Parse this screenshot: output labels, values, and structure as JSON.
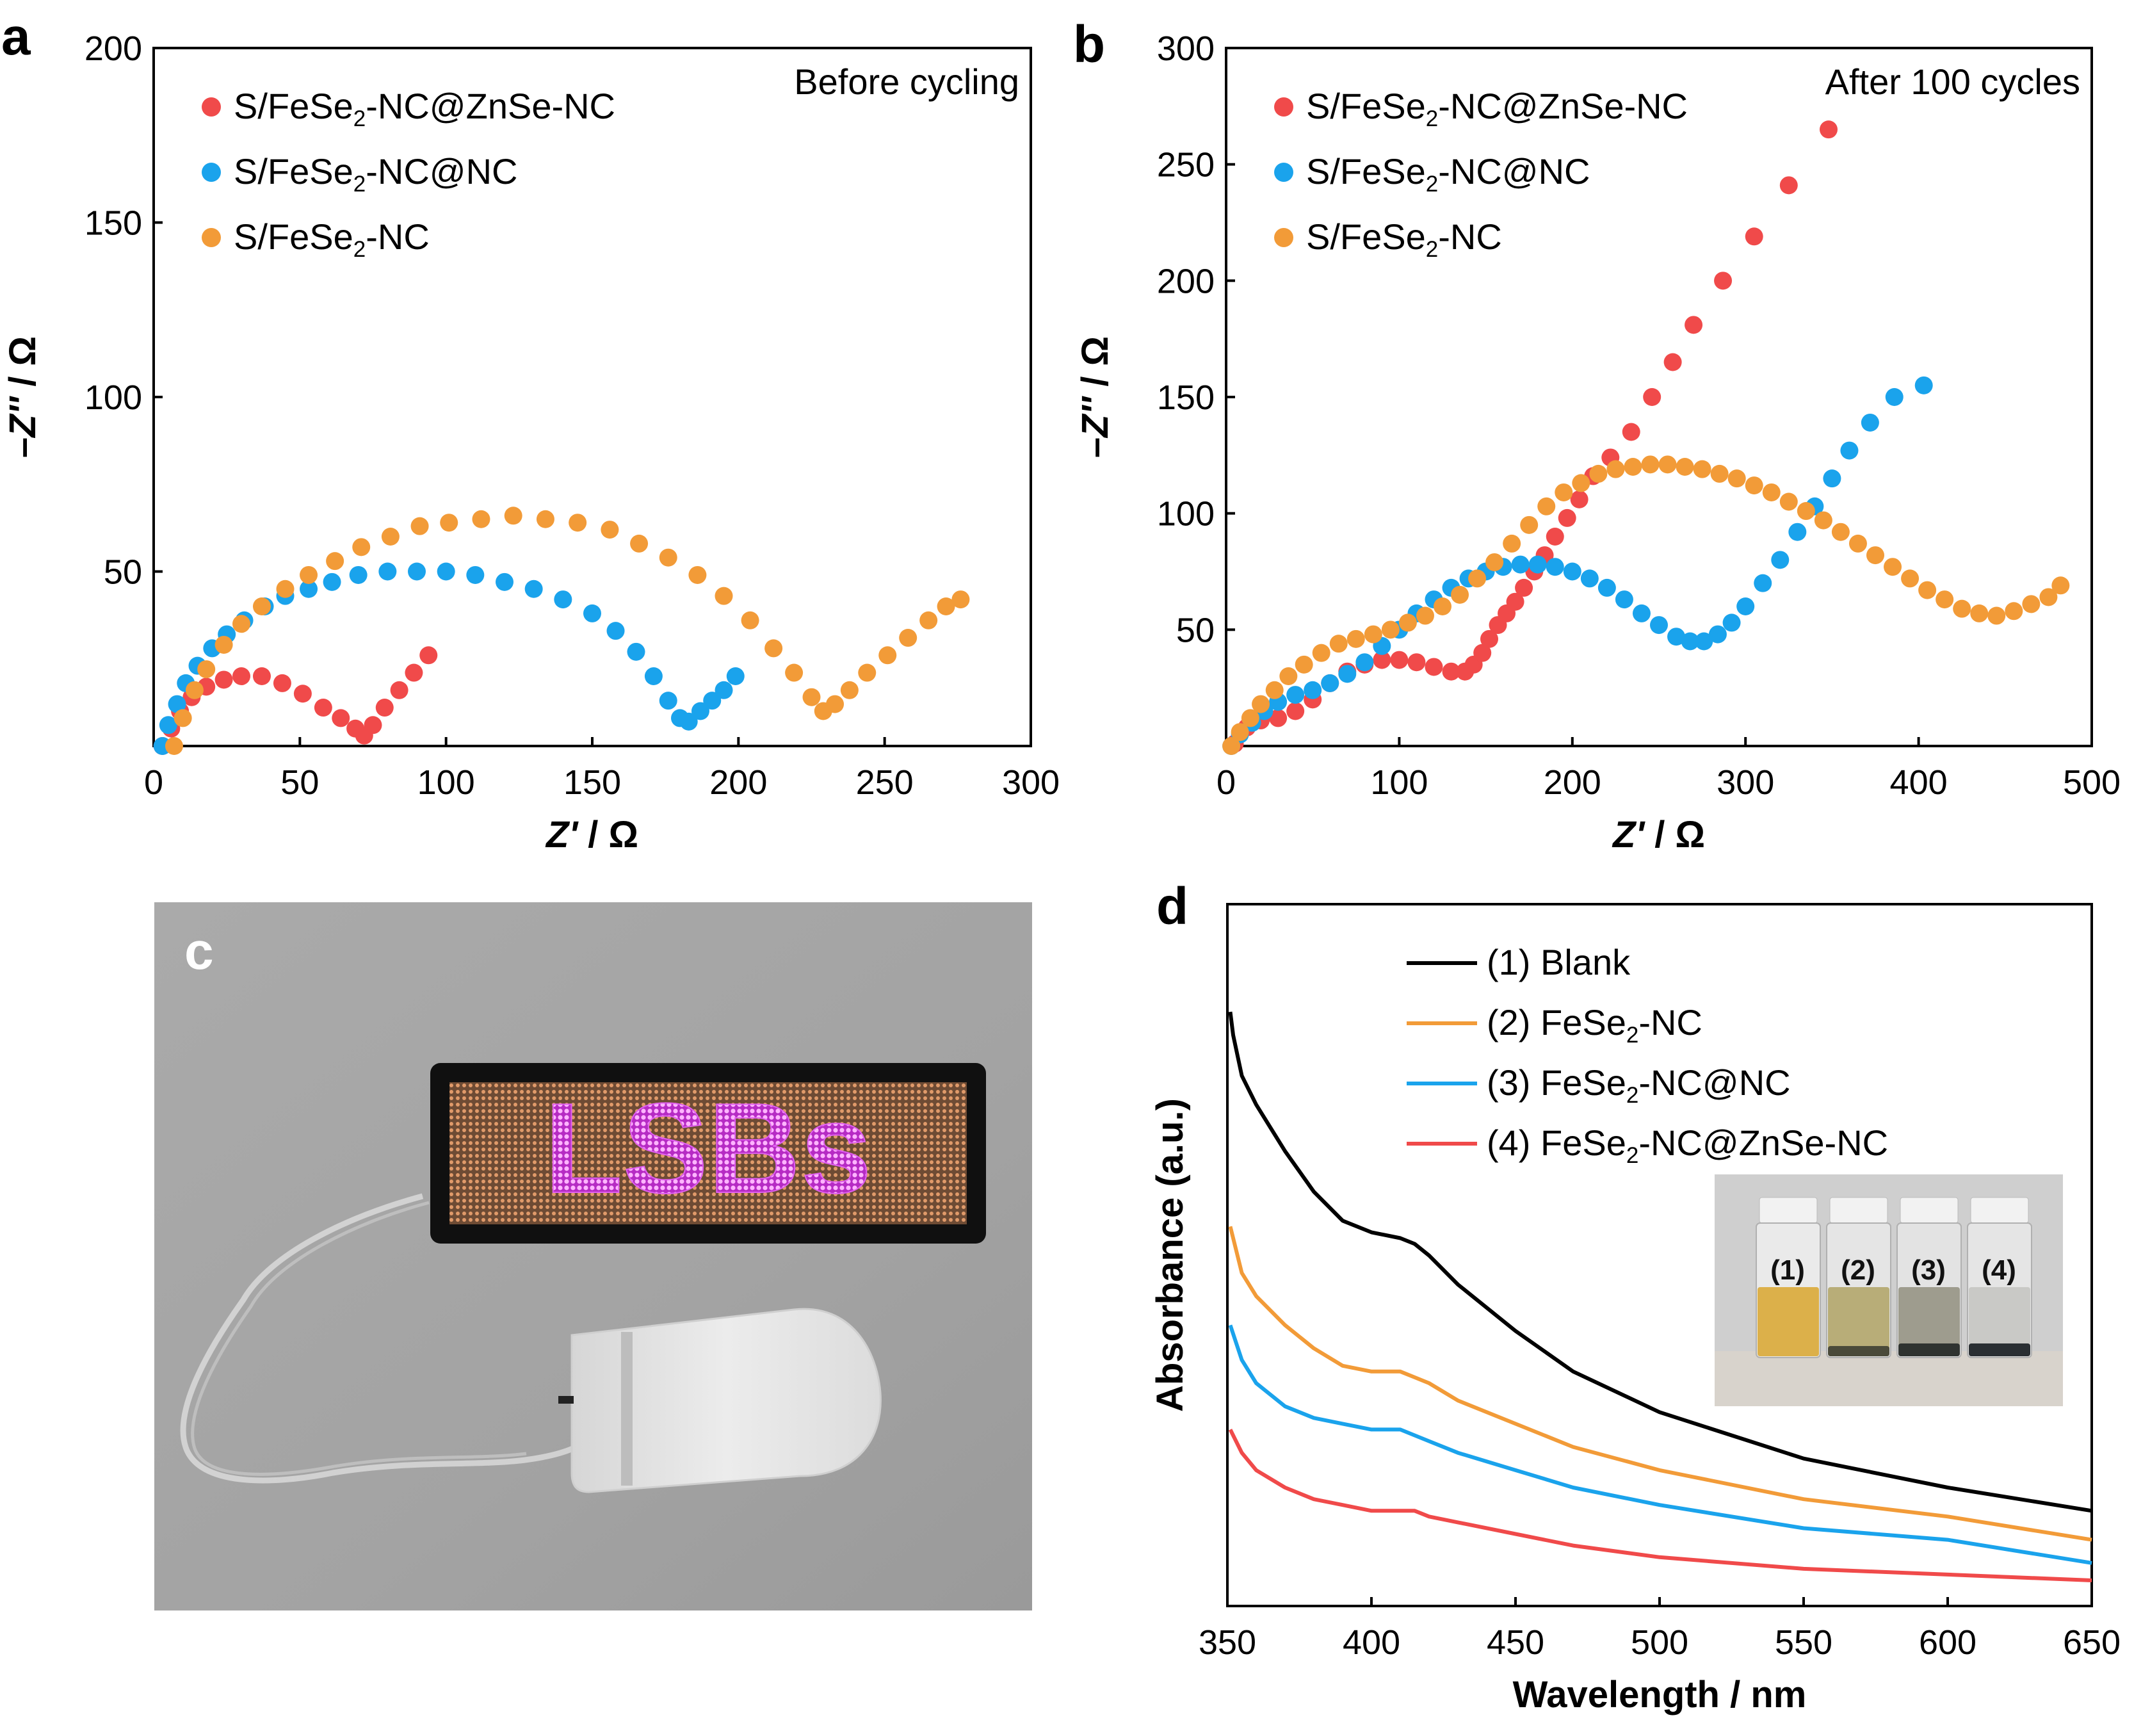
{
  "colors": {
    "red": "#f04a4a",
    "blue": "#1aa3ec",
    "orange": "#f29b38",
    "black": "#000000"
  },
  "panels": {
    "a": {
      "letter": "a",
      "annotation": "Before cycling"
    },
    "b": {
      "letter": "b",
      "annotation": "After 100 cycles"
    },
    "c": {
      "letter": "c",
      "display_text": "LSBs"
    },
    "d": {
      "letter": "d",
      "vial_labels": [
        "(1)",
        "(2)",
        "(3)",
        "(4)"
      ]
    }
  },
  "chart_data": [
    {
      "panel": "a",
      "type": "scatter",
      "title": "",
      "annotation": "Before cycling",
      "xlabel": "Z' / Ω",
      "ylabel": "-Z'' / Ω",
      "xlim": [
        0,
        300
      ],
      "ylim": [
        0,
        200
      ],
      "xticks": [
        0,
        50,
        100,
        150,
        200,
        250,
        300
      ],
      "yticks": [
        50,
        100,
        150,
        200
      ],
      "legend_position": "top-left",
      "series": [
        {
          "name": "S/FeSe₂-NC@ZnSe-NC",
          "color": "#f04a4a",
          "points": [
            [
              3,
              0
            ],
            [
              6,
              5
            ],
            [
              9,
              10
            ],
            [
              13,
              14
            ],
            [
              18,
              17
            ],
            [
              24,
              19
            ],
            [
              30,
              20
            ],
            [
              37,
              20
            ],
            [
              44,
              18
            ],
            [
              51,
              15
            ],
            [
              58,
              11
            ],
            [
              64,
              8
            ],
            [
              69,
              5
            ],
            [
              72,
              3
            ],
            [
              75,
              6
            ],
            [
              79,
              11
            ],
            [
              84,
              16
            ],
            [
              89,
              21
            ],
            [
              94,
              26
            ]
          ]
        },
        {
          "name": "S/FeSe₂-NC@NC",
          "color": "#1aa3ec",
          "points": [
            [
              3,
              0
            ],
            [
              5,
              6
            ],
            [
              8,
              12
            ],
            [
              11,
              18
            ],
            [
              15,
              23
            ],
            [
              20,
              28
            ],
            [
              25,
              32
            ],
            [
              31,
              36
            ],
            [
              38,
              40
            ],
            [
              45,
              43
            ],
            [
              53,
              45
            ],
            [
              61,
              47
            ],
            [
              70,
              49
            ],
            [
              80,
              50
            ],
            [
              90,
              50
            ],
            [
              100,
              50
            ],
            [
              110,
              49
            ],
            [
              120,
              47
            ],
            [
              130,
              45
            ],
            [
              140,
              42
            ],
            [
              150,
              38
            ],
            [
              158,
              33
            ],
            [
              165,
              27
            ],
            [
              171,
              20
            ],
            [
              176,
              13
            ],
            [
              180,
              8
            ],
            [
              183,
              7
            ],
            [
              187,
              10
            ],
            [
              191,
              13
            ],
            [
              195,
              16
            ],
            [
              199,
              20
            ]
          ]
        },
        {
          "name": "S/FeSe₂-NC",
          "color": "#f29b38",
          "points": [
            [
              7,
              0
            ],
            [
              10,
              8
            ],
            [
              14,
              16
            ],
            [
              18,
              22
            ],
            [
              24,
              29
            ],
            [
              30,
              35
            ],
            [
              37,
              40
            ],
            [
              45,
              45
            ],
            [
              53,
              49
            ],
            [
              62,
              53
            ],
            [
              71,
              57
            ],
            [
              81,
              60
            ],
            [
              91,
              63
            ],
            [
              101,
              64
            ],
            [
              112,
              65
            ],
            [
              123,
              66
            ],
            [
              134,
              65
            ],
            [
              145,
              64
            ],
            [
              156,
              62
            ],
            [
              166,
              58
            ],
            [
              176,
              54
            ],
            [
              186,
              49
            ],
            [
              195,
              43
            ],
            [
              204,
              36
            ],
            [
              212,
              28
            ],
            [
              219,
              21
            ],
            [
              225,
              14
            ],
            [
              229,
              10
            ],
            [
              233,
              12
            ],
            [
              238,
              16
            ],
            [
              244,
              21
            ],
            [
              251,
              26
            ],
            [
              258,
              31
            ],
            [
              265,
              36
            ],
            [
              271,
              40
            ],
            [
              276,
              42
            ]
          ]
        }
      ]
    },
    {
      "panel": "b",
      "type": "scatter",
      "title": "",
      "annotation": "After 100 cycles",
      "xlabel": "Z' / Ω",
      "ylabel": "-Z'' / Ω",
      "xlim": [
        0,
        500
      ],
      "ylim": [
        0,
        300
      ],
      "xticks": [
        0,
        100,
        200,
        300,
        400,
        500
      ],
      "yticks": [
        50,
        100,
        150,
        200,
        250,
        300
      ],
      "legend_position": "top-left",
      "series": [
        {
          "name": "S/FeSe₂-NC@ZnSe-NC",
          "color": "#f04a4a",
          "points": [
            [
              5,
              1
            ],
            [
              12,
              8
            ],
            [
              20,
              11
            ],
            [
              30,
              12
            ],
            [
              40,
              15
            ],
            [
              50,
              20
            ],
            [
              60,
              27
            ],
            [
              70,
              32
            ],
            [
              80,
              35
            ],
            [
              90,
              37
            ],
            [
              100,
              37
            ],
            [
              110,
              36
            ],
            [
              120,
              34
            ],
            [
              130,
              32
            ],
            [
              138,
              32
            ],
            [
              143,
              35
            ],
            [
              148,
              40
            ],
            [
              152,
              46
            ],
            [
              157,
              52
            ],
            [
              162,
              57
            ],
            [
              167,
              62
            ],
            [
              172,
              68
            ],
            [
              178,
              75
            ],
            [
              184,
              82
            ],
            [
              190,
              90
            ],
            [
              197,
              98
            ],
            [
              204,
              106
            ],
            [
              212,
              116
            ],
            [
              222,
              124
            ],
            [
              234,
              135
            ],
            [
              246,
              150
            ],
            [
              258,
              165
            ],
            [
              270,
              181
            ],
            [
              287,
              200
            ],
            [
              305,
              219
            ],
            [
              325,
              241
            ],
            [
              348,
              265
            ]
          ]
        },
        {
          "name": "S/FeSe₂-NC@NC",
          "color": "#1aa3ec",
          "points": [
            [
              3,
              0
            ],
            [
              8,
              5
            ],
            [
              15,
              10
            ],
            [
              22,
              15
            ],
            [
              30,
              19
            ],
            [
              40,
              22
            ],
            [
              50,
              24
            ],
            [
              60,
              27
            ],
            [
              70,
              31
            ],
            [
              80,
              36
            ],
            [
              90,
              43
            ],
            [
              100,
              50
            ],
            [
              110,
              57
            ],
            [
              120,
              63
            ],
            [
              130,
              68
            ],
            [
              140,
              72
            ],
            [
              150,
              75
            ],
            [
              160,
              77
            ],
            [
              170,
              78
            ],
            [
              180,
              78
            ],
            [
              190,
              77
            ],
            [
              200,
              75
            ],
            [
              210,
              72
            ],
            [
              220,
              68
            ],
            [
              230,
              63
            ],
            [
              240,
              57
            ],
            [
              250,
              52
            ],
            [
              260,
              47
            ],
            [
              268,
              45
            ],
            [
              276,
              45
            ],
            [
              284,
              48
            ],
            [
              292,
              53
            ],
            [
              300,
              60
            ],
            [
              310,
              70
            ],
            [
              320,
              80
            ],
            [
              330,
              92
            ],
            [
              340,
              103
            ],
            [
              350,
              115
            ],
            [
              360,
              127
            ],
            [
              372,
              139
            ],
            [
              386,
              150
            ],
            [
              403,
              155
            ]
          ]
        },
        {
          "name": "S/FeSe₂-NC",
          "color": "#f29b38",
          "points": [
            [
              3,
              0
            ],
            [
              8,
              6
            ],
            [
              14,
              12
            ],
            [
              20,
              18
            ],
            [
              28,
              24
            ],
            [
              36,
              30
            ],
            [
              45,
              35
            ],
            [
              55,
              40
            ],
            [
              65,
              44
            ],
            [
              75,
              46
            ],
            [
              85,
              48
            ],
            [
              95,
              50
            ],
            [
              105,
              53
            ],
            [
              115,
              56
            ],
            [
              125,
              60
            ],
            [
              135,
              65
            ],
            [
              145,
              72
            ],
            [
              155,
              79
            ],
            [
              165,
              87
            ],
            [
              175,
              95
            ],
            [
              185,
              103
            ],
            [
              195,
              109
            ],
            [
              205,
              113
            ],
            [
              215,
              117
            ],
            [
              225,
              119
            ],
            [
              235,
              120
            ],
            [
              245,
              121
            ],
            [
              255,
              121
            ],
            [
              265,
              120
            ],
            [
              275,
              119
            ],
            [
              285,
              117
            ],
            [
              295,
              115
            ],
            [
              305,
              112
            ],
            [
              315,
              109
            ],
            [
              325,
              105
            ],
            [
              335,
              101
            ],
            [
              345,
              97
            ],
            [
              355,
              92
            ],
            [
              365,
              87
            ],
            [
              375,
              82
            ],
            [
              385,
              77
            ],
            [
              395,
              72
            ],
            [
              405,
              67
            ],
            [
              415,
              63
            ],
            [
              425,
              59
            ],
            [
              435,
              57
            ],
            [
              445,
              56
            ],
            [
              455,
              58
            ],
            [
              465,
              61
            ],
            [
              475,
              64
            ],
            [
              482,
              69
            ]
          ]
        }
      ]
    },
    {
      "panel": "d",
      "type": "line",
      "title": "",
      "xlabel": "Wavelength / nm",
      "ylabel": "Absorbance (a.u.)",
      "xlim": [
        350,
        650
      ],
      "ylim": [
        0,
        100
      ],
      "xticks": [
        350,
        400,
        450,
        500,
        550,
        600,
        650
      ],
      "legend_position": "top",
      "series": [
        {
          "name": "(1) Blank",
          "color": "#000000",
          "x": [
            351,
            352,
            355,
            360,
            370,
            380,
            390,
            400,
            410,
            415,
            420,
            430,
            450,
            470,
            500,
            550,
            600,
            650
          ],
          "values": [
            98,
            94,
            87,
            82,
            74,
            67,
            62,
            60,
            59,
            58,
            56,
            51,
            43,
            36,
            29,
            21,
            16,
            12
          ]
        },
        {
          "name": "(2) FeSe₂-NC",
          "color": "#f29b38",
          "x": [
            351,
            355,
            360,
            370,
            380,
            390,
            400,
            410,
            415,
            420,
            430,
            450,
            470,
            500,
            550,
            600,
            650
          ],
          "values": [
            61,
            53,
            49,
            44,
            40,
            37,
            36,
            36,
            35,
            34,
            31,
            27,
            23,
            19,
            14,
            11,
            7
          ]
        },
        {
          "name": "(3) FeSe₂-NC@NC",
          "color": "#1aa3ec",
          "x": [
            351,
            355,
            360,
            370,
            380,
            390,
            400,
            410,
            415,
            420,
            430,
            450,
            470,
            500,
            550,
            600,
            650
          ],
          "values": [
            44,
            38,
            34,
            30,
            28,
            27,
            26,
            26,
            25,
            24,
            22,
            19,
            16,
            13,
            9,
            7,
            3
          ]
        },
        {
          "name": "(4) FeSe₂-NC@ZnSe-NC",
          "color": "#f04a4a",
          "x": [
            351,
            355,
            360,
            370,
            380,
            390,
            400,
            410,
            415,
            420,
            430,
            450,
            470,
            500,
            550,
            600,
            650
          ],
          "values": [
            26,
            22,
            19,
            16,
            14,
            13,
            12,
            12,
            12,
            11,
            10,
            8,
            6,
            4,
            2,
            1,
            0
          ]
        }
      ]
    }
  ]
}
